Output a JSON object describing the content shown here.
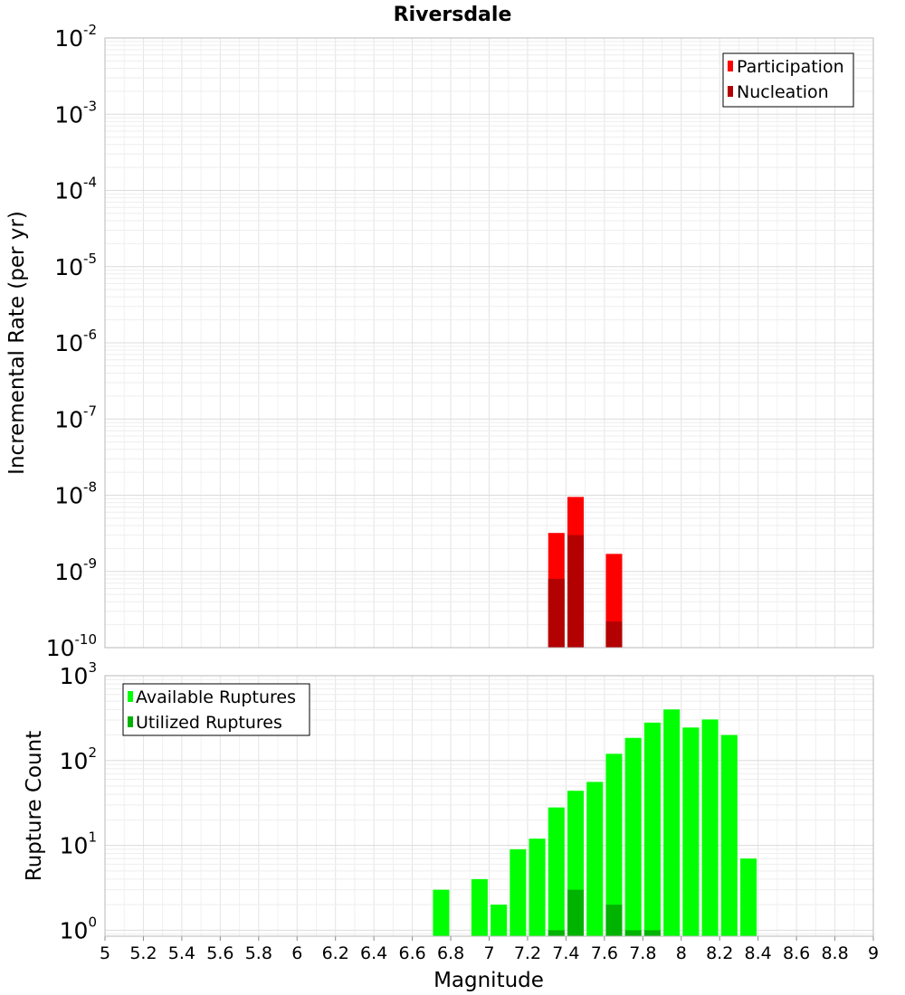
{
  "chart_data": [
    {
      "type": "bar",
      "title": "Riversdale",
      "xlabel": "",
      "ylabel": "Incremental Rate (per yr)",
      "yscale": "log",
      "ylim": [
        1e-10,
        0.01
      ],
      "xlim": [
        5,
        9
      ],
      "ytick_bases": [
        "10",
        "10",
        "10",
        "10",
        "10",
        "10",
        "10",
        "10",
        "10"
      ],
      "ytick_exponents": [
        "-10",
        "-9",
        "-8",
        "-7",
        "-6",
        "-5",
        "-4",
        "-3",
        "-2"
      ],
      "legend_position": "top-right",
      "legend": [
        "Participation",
        "Nucleation"
      ],
      "grid": true,
      "x": [
        7.35,
        7.45,
        7.65
      ],
      "series": [
        {
          "name": "Participation",
          "color": "#ff0000",
          "values": [
            3.2e-09,
            9.5e-09,
            1.7e-09
          ]
        },
        {
          "name": "Nucleation",
          "color": "#b30000",
          "values": [
            8e-10,
            3e-09,
            2.2e-10
          ]
        }
      ]
    },
    {
      "type": "bar",
      "title": "",
      "xlabel": "Magnitude",
      "ylabel": "Rupture Count",
      "yscale": "log",
      "ylim": [
        0.85,
        1000
      ],
      "xlim": [
        5,
        9
      ],
      "ytick_bases": [
        "10",
        "10",
        "10",
        "10"
      ],
      "ytick_exponents": [
        "0",
        "1",
        "2",
        "3"
      ],
      "xtick_labels": [
        "5",
        "5.2",
        "5.4",
        "5.6",
        "5.8",
        "6",
        "6.2",
        "6.4",
        "6.6",
        "6.8",
        "7",
        "7.2",
        "7.4",
        "7.6",
        "7.8",
        "8",
        "8.2",
        "8.4",
        "8.6",
        "8.8",
        "9"
      ],
      "legend_position": "top-left",
      "legend": [
        "Available Ruptures",
        "Utilized Ruptures"
      ],
      "grid": true,
      "x": [
        6.75,
        6.95,
        7.05,
        7.15,
        7.25,
        7.35,
        7.45,
        7.55,
        7.65,
        7.75,
        7.85,
        7.95,
        8.05,
        8.15,
        8.25,
        8.35
      ],
      "series": [
        {
          "name": "Available Ruptures",
          "color": "#00ff00",
          "values": [
            3,
            4,
            2,
            9,
            12,
            28,
            44,
            56,
            120,
            185,
            280,
            400,
            245,
            305,
            200,
            7
          ]
        },
        {
          "name": "Utilized Ruptures",
          "color": "#00b300",
          "values": [
            0,
            0,
            0,
            0,
            0,
            1,
            3,
            0,
            2,
            1,
            1,
            0,
            0,
            0,
            0,
            0
          ]
        }
      ]
    }
  ]
}
